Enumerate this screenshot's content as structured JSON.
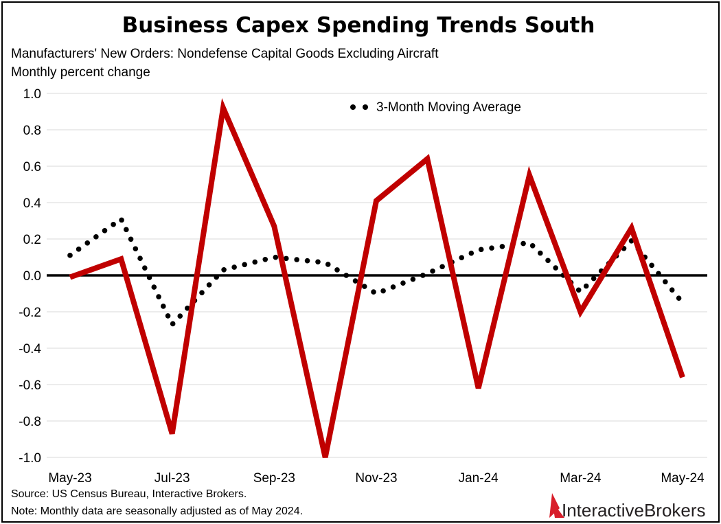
{
  "colors": {
    "monthly_line": "#c00000",
    "moving_average": "#000000",
    "gridline": "#d9d9d9",
    "zero_line": "#000000",
    "brand_red": "#d81e2a"
  },
  "notes": {
    "source": "Source: US Census Bureau, Interactive Brokers.",
    "note": "Note: Monthly data are seasonally adjusted as of May 2024."
  },
  "brand": {
    "logo_icon": "interactive-brokers-logo-icon",
    "name_part1": "Interactive",
    "name_part2": "Brokers"
  },
  "chart_data": {
    "type": "line",
    "title": "Business Capex Spending Trends South",
    "subtitle_lines": [
      "Manufacturers' New Orders: Nondefense Capital Goods Excluding Aircraft",
      "Monthly percent change"
    ],
    "x": [
      "May-23",
      "Jun-23",
      "Jul-23",
      "Aug-23",
      "Sep-23",
      "Oct-23",
      "Nov-23",
      "Dec-23",
      "Jan-24",
      "Feb-24",
      "Mar-24",
      "Apr-24",
      "May-24"
    ],
    "x_tick_labels": [
      "May-23",
      "Jul-23",
      "Sep-23",
      "Nov-23",
      "Jan-24",
      "Mar-24",
      "May-24"
    ],
    "y_tick_labels": [
      "1.0",
      "0.8",
      "0.6",
      "0.4",
      "0.2",
      "0.0",
      "-0.2",
      "-0.4",
      "-0.6",
      "-0.8",
      "-1.0"
    ],
    "ylim": [
      -1.0,
      1.0
    ],
    "y_ticks": [
      1.0,
      0.8,
      0.6,
      0.4,
      0.2,
      0.0,
      -0.2,
      -0.4,
      -0.6,
      -0.8,
      -1.0
    ],
    "grid": true,
    "legend_position": "top-center",
    "series": [
      {
        "values": [
          -0.01,
          0.09,
          -0.87,
          0.92,
          0.27,
          -1.0,
          0.41,
          0.64,
          -0.62,
          0.55,
          -0.2,
          0.26,
          -0.56
        ],
        "style": "solid"
      },
      {
        "name": "3-Month Moving Average",
        "values": [
          0.11,
          0.31,
          -0.27,
          0.03,
          0.1,
          0.07,
          -0.1,
          0.01,
          0.14,
          0.18,
          -0.09,
          0.19,
          -0.15
        ],
        "style": "dotted"
      }
    ]
  }
}
